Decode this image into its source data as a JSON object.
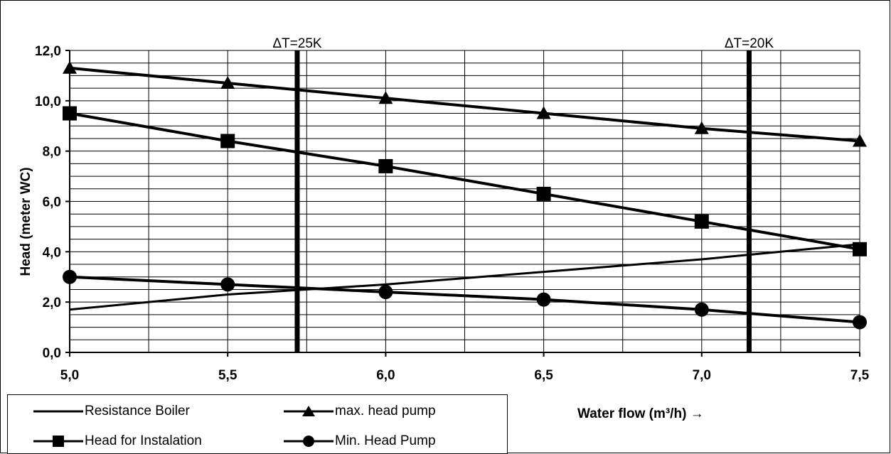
{
  "chart_data": {
    "type": "line",
    "xlabel": "Water flow (m³/h) →",
    "ylabel": "Head (meter WC)",
    "xlim": [
      5.0,
      7.5
    ],
    "ylim": [
      0.0,
      12.0
    ],
    "x_ticks": [
      "5,0",
      "5,5",
      "6,0",
      "6,5",
      "7,0",
      "7,5"
    ],
    "y_ticks": [
      "0,0",
      "2,0",
      "4,0",
      "6,0",
      "8,0",
      "10,0",
      "12,0"
    ],
    "grid": true,
    "legend_position": "bottom-left",
    "reference_lines": [
      {
        "label": "ΔT=25K",
        "x": 5.72
      },
      {
        "label": "ΔT=20K",
        "x": 7.15
      }
    ],
    "series": [
      {
        "name": "Resistance Boiler",
        "marker": "none",
        "x": [
          5.0,
          5.5,
          6.0,
          6.5,
          7.0,
          7.5
        ],
        "y": [
          1.7,
          2.3,
          2.7,
          3.2,
          3.7,
          4.3
        ]
      },
      {
        "name": "max. head pump",
        "marker": "triangle",
        "x": [
          5.0,
          5.5,
          6.0,
          6.5,
          7.0,
          7.5
        ],
        "y": [
          11.3,
          10.7,
          10.1,
          9.5,
          8.9,
          8.4
        ]
      },
      {
        "name": "Head for Instalation",
        "marker": "square",
        "x": [
          5.0,
          5.5,
          6.0,
          6.5,
          7.0,
          7.5
        ],
        "y": [
          9.5,
          8.4,
          7.4,
          6.3,
          5.2,
          4.1
        ]
      },
      {
        "name": "Min. Head Pump",
        "marker": "circle",
        "x": [
          5.0,
          5.5,
          6.0,
          6.5,
          7.0,
          7.5
        ],
        "y": [
          3.0,
          2.7,
          2.4,
          2.1,
          1.7,
          1.2
        ]
      }
    ]
  },
  "legend": {
    "items": [
      {
        "label": "Resistance Boiler",
        "marker": "none"
      },
      {
        "label": "max. head pump",
        "marker": "triangle"
      },
      {
        "label": "Head for Instalation",
        "marker": "square"
      },
      {
        "label": "Min. Head Pump",
        "marker": "circle"
      }
    ]
  }
}
